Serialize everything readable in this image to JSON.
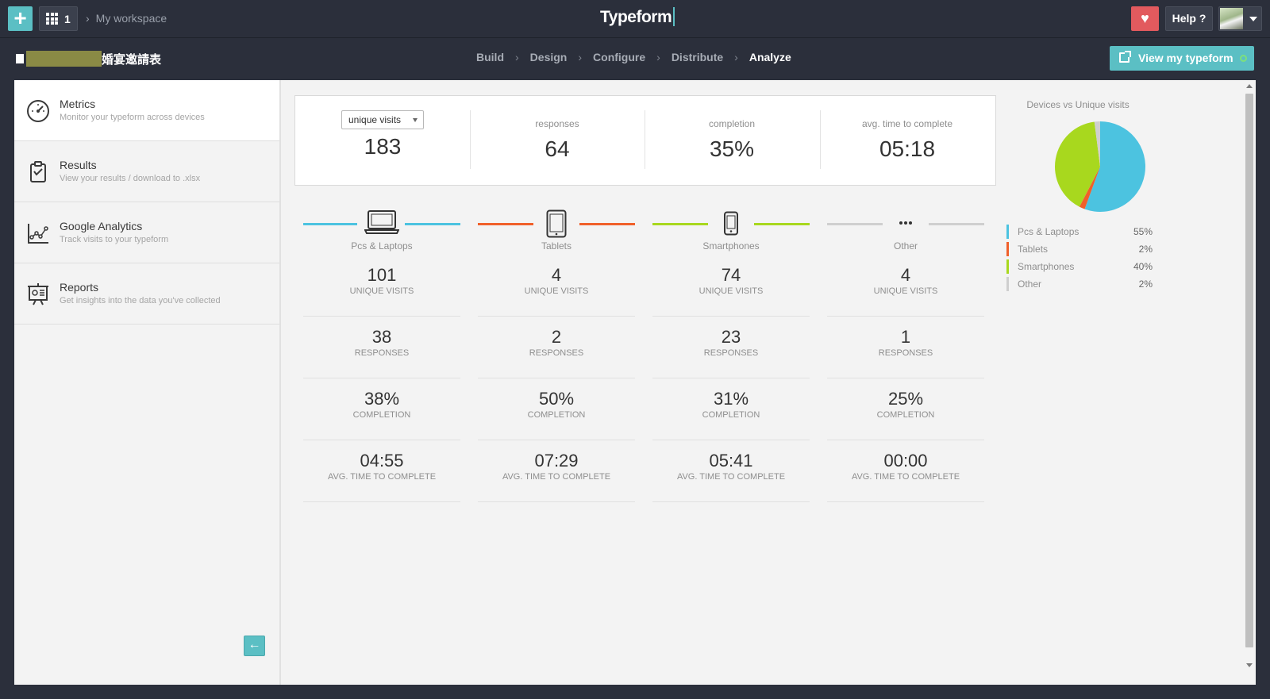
{
  "topbar": {
    "workspace_count": "1",
    "workspace_label": "My workspace",
    "logo": "Typeform",
    "help_label": "Help ?"
  },
  "subbar": {
    "form_title": "婚宴邀請表",
    "steps": [
      "Build",
      "Design",
      "Configure",
      "Distribute",
      "Analyze"
    ],
    "active_step": "Analyze",
    "view_button": "View my typeform"
  },
  "sidebar": {
    "items": [
      {
        "title": "Metrics",
        "subtitle": "Monitor your typeform across devices",
        "icon": "speedometer-icon"
      },
      {
        "title": "Results",
        "subtitle": "View your results / download to .xlsx",
        "icon": "clipboard-icon"
      },
      {
        "title": "Google Analytics",
        "subtitle": "Track visits to your typeform",
        "icon": "line-chart-icon"
      },
      {
        "title": "Reports",
        "subtitle": "Get insights into the data you've collected",
        "icon": "presentation-icon"
      }
    ]
  },
  "summary": {
    "select_value": "unique visits",
    "unique_visits": "183",
    "responses_label": "responses",
    "responses": "64",
    "completion_label": "completion",
    "completion": "35%",
    "avg_time_label": "avg. time to complete",
    "avg_time": "05:18"
  },
  "stat_labels": {
    "visits": "UNIQUE VISITS",
    "responses": "RESPONSES",
    "completion": "COMPLETION",
    "avg_time": "AVG. TIME TO COMPLETE"
  },
  "devices": [
    {
      "name": "Pcs & Laptops",
      "color": "#4cc3e0",
      "icon": "laptop-icon",
      "visits": "101",
      "responses": "38",
      "completion": "38%",
      "avg_time": "04:55"
    },
    {
      "name": "Tablets",
      "color": "#f0602a",
      "icon": "tablet-icon",
      "visits": "4",
      "responses": "2",
      "completion": "50%",
      "avg_time": "07:29"
    },
    {
      "name": "Smartphones",
      "color": "#a8d81e",
      "icon": "smartphone-icon",
      "visits": "74",
      "responses": "23",
      "completion": "31%",
      "avg_time": "05:41"
    },
    {
      "name": "Other",
      "color": "#cfcfcf",
      "icon": "ellipsis-icon",
      "visits": "4",
      "responses": "1",
      "completion": "25%",
      "avg_time": "00:00"
    }
  ],
  "chart_data": {
    "type": "pie",
    "title": "Devices vs Unique visits",
    "categories": [
      "Pcs & Laptops",
      "Tablets",
      "Smartphones",
      "Other"
    ],
    "values": [
      55,
      2,
      40,
      2
    ],
    "labels": [
      "55%",
      "2%",
      "40%",
      "2%"
    ],
    "colors": [
      "#4cc3e0",
      "#f0602a",
      "#a8d81e",
      "#cfcfcf"
    ],
    "legend": "bottom"
  }
}
